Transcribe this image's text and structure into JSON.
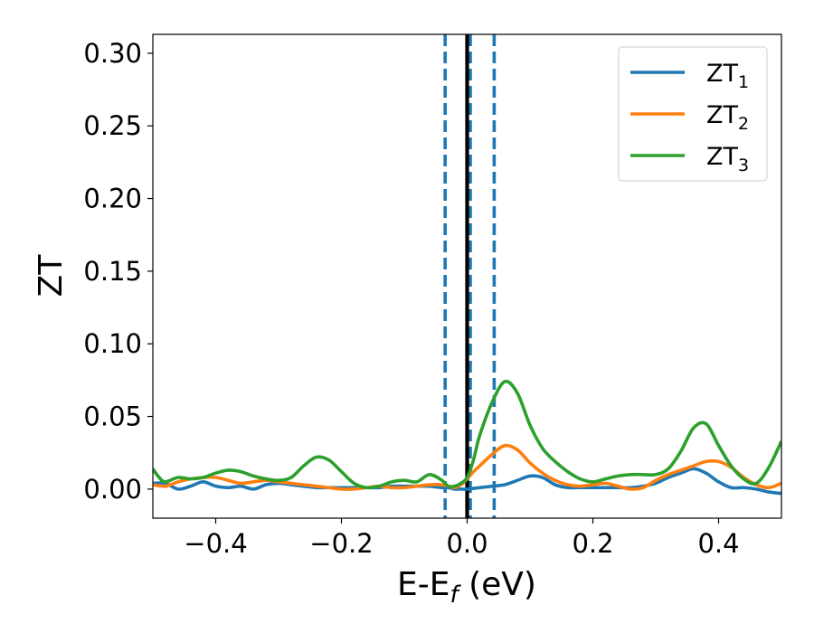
{
  "chart_data": {
    "type": "line",
    "xlabel": "E-E",
    "xlabel_sub": "f",
    "xlabel_unit": " (eV)",
    "ylabel": "ZT",
    "xlim": [
      -0.5,
      0.5
    ],
    "ylim": [
      -0.02,
      0.313
    ],
    "xticks": [
      -0.4,
      -0.2,
      0.0,
      0.2,
      0.4
    ],
    "xtick_labels": [
      "−0.4",
      "−0.2",
      "0.0",
      "0.2",
      "0.4"
    ],
    "yticks": [
      0.0,
      0.05,
      0.1,
      0.15,
      0.2,
      0.25,
      0.3
    ],
    "ytick_labels": [
      "0.00",
      "0.05",
      "0.10",
      "0.15",
      "0.20",
      "0.25",
      "0.30"
    ],
    "grid": false,
    "legend_position": "top-right",
    "vlines": [
      {
        "x": 0.0,
        "color": "#000000",
        "style": "solid"
      },
      {
        "x": -0.035,
        "color": "#1f77b4",
        "style": "dashed"
      },
      {
        "x": 0.005,
        "color": "#1f77b4",
        "style": "dashed"
      },
      {
        "x": 0.043,
        "color": "#1f77b4",
        "style": "dashed"
      }
    ],
    "series": [
      {
        "name": "ZT",
        "name_sub": "1",
        "color": "#1f77b4",
        "x": [
          -0.5,
          -0.48,
          -0.46,
          -0.44,
          -0.42,
          -0.4,
          -0.38,
          -0.36,
          -0.34,
          -0.32,
          -0.3,
          -0.28,
          -0.26,
          -0.24,
          -0.22,
          -0.2,
          -0.18,
          -0.16,
          -0.14,
          -0.12,
          -0.1,
          -0.08,
          -0.06,
          -0.04,
          -0.03,
          -0.02,
          -0.01,
          0.0,
          0.02,
          0.04,
          0.06,
          0.08,
          0.1,
          0.12,
          0.14,
          0.16,
          0.18,
          0.2,
          0.22,
          0.24,
          0.26,
          0.28,
          0.3,
          0.32,
          0.34,
          0.36,
          0.38,
          0.4,
          0.42,
          0.44,
          0.46,
          0.48,
          0.5
        ],
        "values": [
          0.004,
          0.004,
          0.0,
          0.002,
          0.005,
          0.002,
          0.001,
          0.002,
          0.0,
          0.003,
          0.004,
          0.003,
          0.002,
          0.001,
          0.001,
          0.001,
          0.001,
          0.001,
          0.001,
          0.002,
          0.002,
          0.002,
          0.002,
          0.001,
          0.001,
          0.0,
          0.0,
          0.0,
          0.001,
          0.002,
          0.003,
          0.006,
          0.009,
          0.008,
          0.003,
          0.001,
          0.001,
          0.001,
          0.001,
          0.001,
          0.001,
          0.002,
          0.004,
          0.008,
          0.011,
          0.014,
          0.011,
          0.005,
          0.001,
          0.001,
          0.0,
          -0.002,
          -0.003
        ]
      },
      {
        "name": "ZT",
        "name_sub": "2",
        "color": "#ff7f0e",
        "x": [
          -0.5,
          -0.48,
          -0.46,
          -0.44,
          -0.42,
          -0.4,
          -0.38,
          -0.36,
          -0.34,
          -0.32,
          -0.3,
          -0.28,
          -0.26,
          -0.24,
          -0.22,
          -0.2,
          -0.18,
          -0.16,
          -0.14,
          -0.12,
          -0.1,
          -0.08,
          -0.06,
          -0.04,
          -0.03,
          -0.02,
          -0.01,
          0.0,
          0.01,
          0.02,
          0.04,
          0.06,
          0.08,
          0.1,
          0.12,
          0.14,
          0.16,
          0.18,
          0.2,
          0.22,
          0.24,
          0.26,
          0.28,
          0.3,
          0.32,
          0.34,
          0.36,
          0.38,
          0.4,
          0.42,
          0.44,
          0.46,
          0.48,
          0.5
        ],
        "values": [
          0.003,
          0.002,
          0.005,
          0.007,
          0.008,
          0.008,
          0.006,
          0.004,
          0.005,
          0.006,
          0.005,
          0.004,
          0.003,
          0.002,
          0.001,
          0.0,
          0.0,
          0.001,
          0.002,
          0.001,
          0.001,
          0.002,
          0.003,
          0.003,
          0.002,
          0.001,
          0.003,
          0.007,
          0.012,
          0.016,
          0.024,
          0.03,
          0.027,
          0.018,
          0.011,
          0.006,
          0.003,
          0.002,
          0.003,
          0.004,
          0.002,
          0.0,
          0.001,
          0.006,
          0.01,
          0.013,
          0.016,
          0.019,
          0.019,
          0.015,
          0.008,
          0.003,
          0.001,
          0.004
        ]
      },
      {
        "name": "ZT",
        "name_sub": "3",
        "color": "#2ca02c",
        "x": [
          -0.5,
          -0.49,
          -0.48,
          -0.46,
          -0.44,
          -0.42,
          -0.4,
          -0.38,
          -0.36,
          -0.34,
          -0.32,
          -0.3,
          -0.28,
          -0.26,
          -0.24,
          -0.22,
          -0.2,
          -0.18,
          -0.16,
          -0.14,
          -0.12,
          -0.1,
          -0.08,
          -0.06,
          -0.04,
          -0.03,
          -0.02,
          -0.01,
          0.0,
          0.01,
          0.02,
          0.04,
          0.06,
          0.08,
          0.1,
          0.12,
          0.14,
          0.16,
          0.18,
          0.2,
          0.22,
          0.24,
          0.26,
          0.28,
          0.3,
          0.32,
          0.34,
          0.36,
          0.38,
          0.4,
          0.42,
          0.44,
          0.46,
          0.48,
          0.5
        ],
        "values": [
          0.014,
          0.008,
          0.005,
          0.008,
          0.007,
          0.008,
          0.011,
          0.013,
          0.012,
          0.009,
          0.007,
          0.006,
          0.008,
          0.016,
          0.022,
          0.02,
          0.012,
          0.004,
          0.001,
          0.002,
          0.005,
          0.006,
          0.005,
          0.01,
          0.006,
          0.002,
          0.002,
          0.004,
          0.008,
          0.02,
          0.037,
          0.06,
          0.074,
          0.066,
          0.044,
          0.028,
          0.019,
          0.012,
          0.007,
          0.005,
          0.007,
          0.009,
          0.01,
          0.01,
          0.01,
          0.014,
          0.026,
          0.042,
          0.045,
          0.03,
          0.016,
          0.007,
          0.004,
          0.015,
          0.033
        ]
      }
    ]
  }
}
